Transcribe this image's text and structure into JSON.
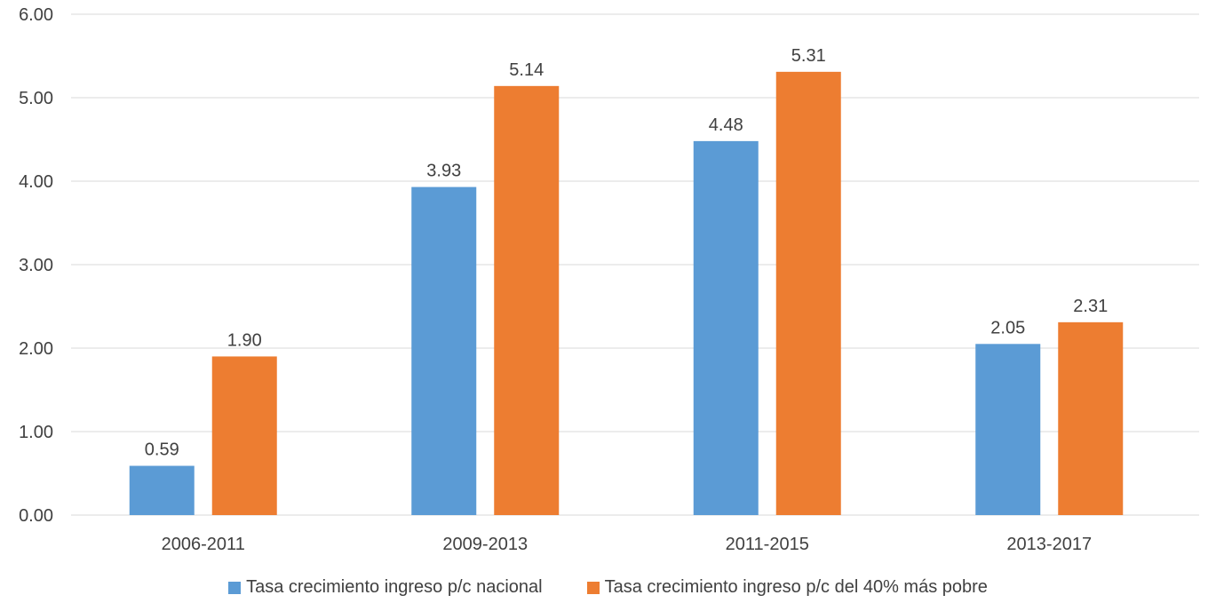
{
  "chart_data": {
    "type": "bar",
    "categories": [
      "2006-2011",
      "2009-2013",
      "2011-2015",
      "2013-2017"
    ],
    "series": [
      {
        "name": "Tasa crecimiento ingreso p/c nacional",
        "values": [
          0.59,
          3.93,
          4.48,
          2.05
        ],
        "labels": [
          "0.59",
          "3.93",
          "4.48",
          "2.05"
        ],
        "color": "#5B9BD5"
      },
      {
        "name": "Tasa crecimiento ingreso p/c del 40% más pobre",
        "values": [
          1.9,
          5.14,
          5.31,
          2.31
        ],
        "labels": [
          "1.90",
          "5.14",
          "5.31",
          "2.31"
        ],
        "color": "#ED7D31"
      }
    ],
    "yticks": [
      "0.00",
      "1.00",
      "2.00",
      "3.00",
      "4.00",
      "5.00",
      "6.00"
    ],
    "ylim": [
      0,
      6
    ],
    "grid": true,
    "legend_position": "bottom"
  }
}
